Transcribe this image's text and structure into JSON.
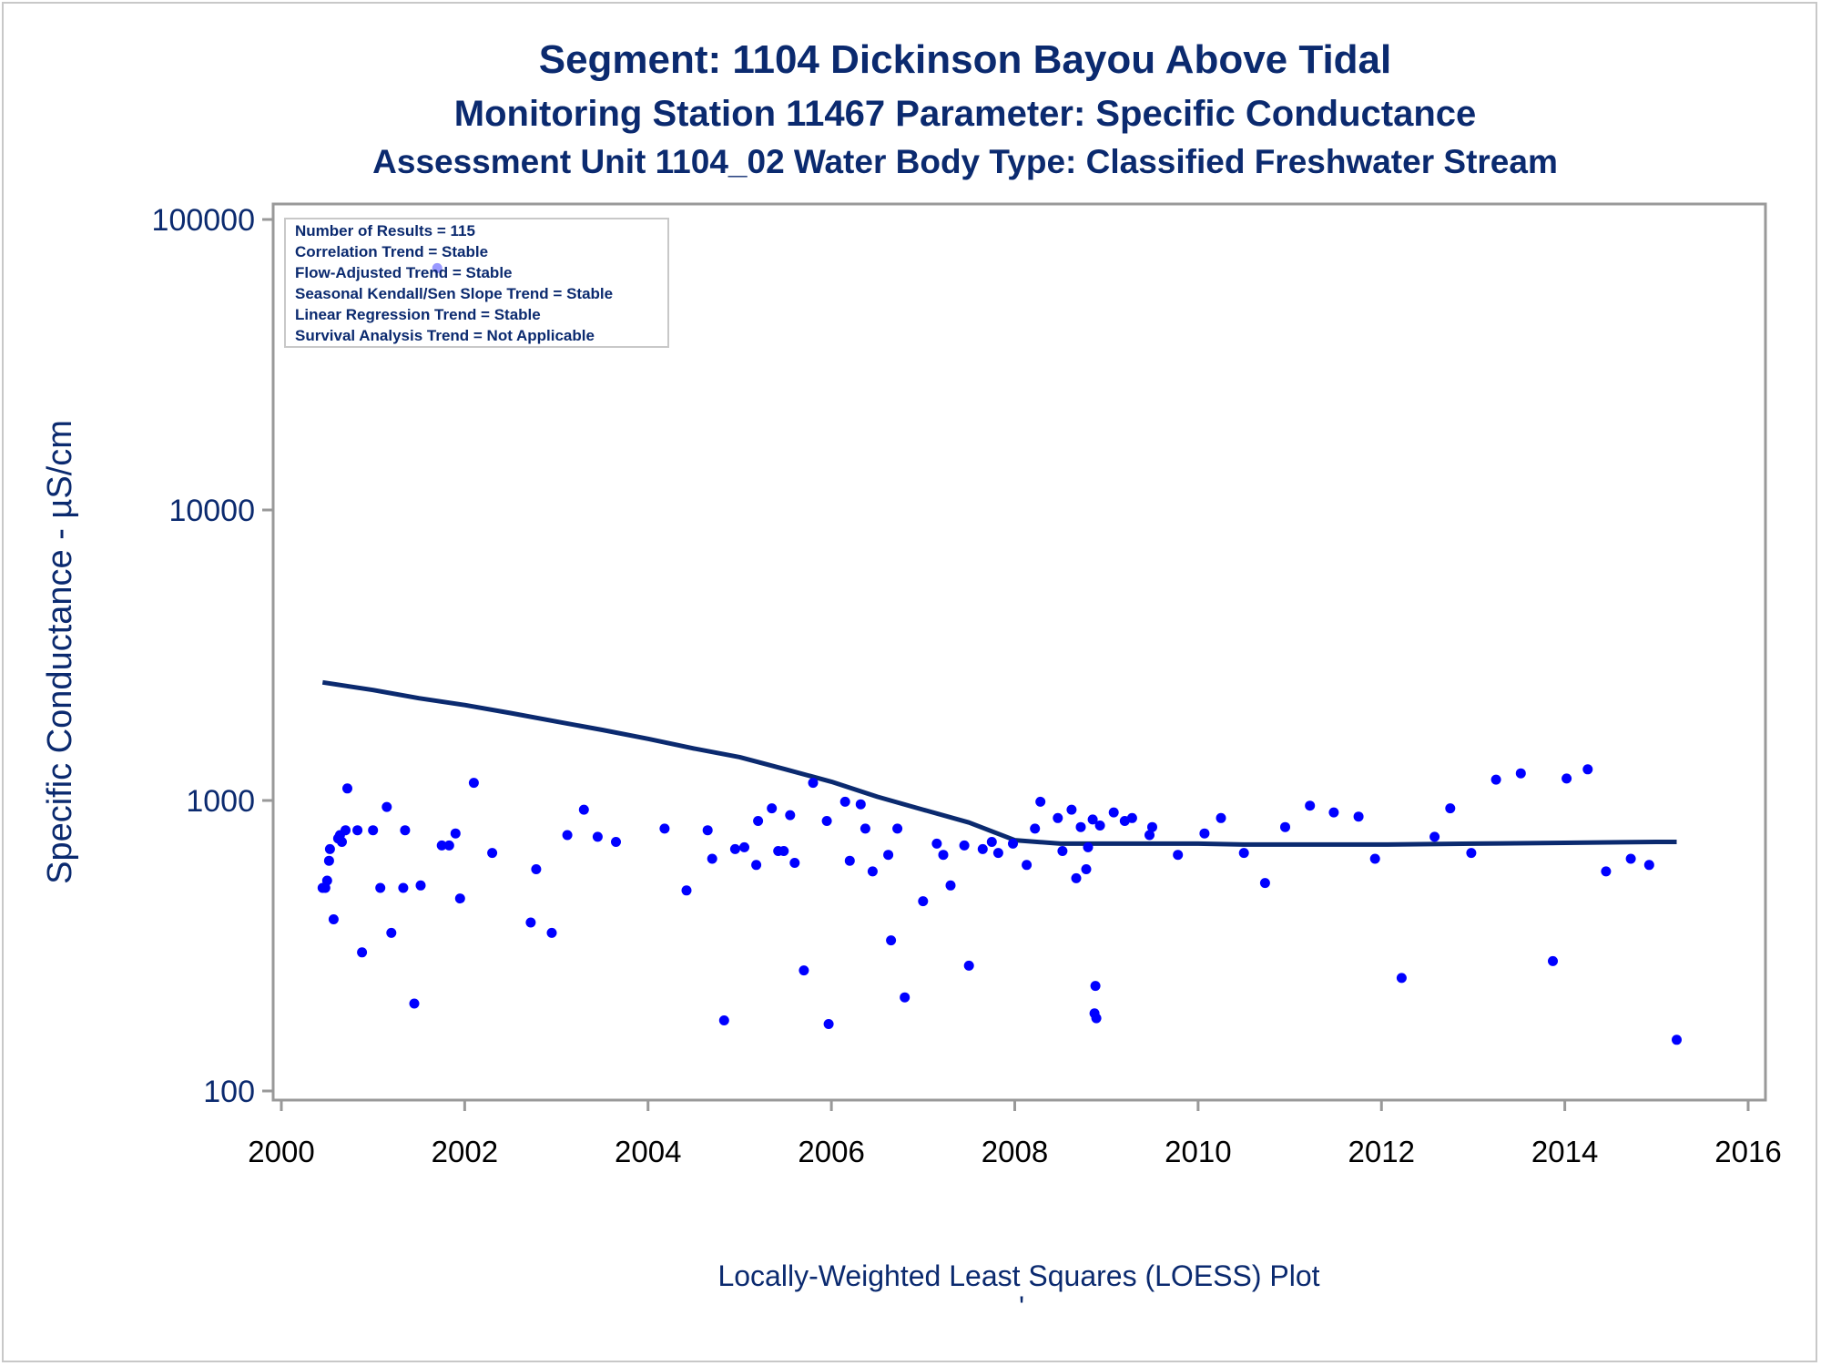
{
  "chart_data": {
    "type": "scatter",
    "title": "Segment: 1104  Dickinson Bayou Above Tidal",
    "subtitle": "Monitoring Station 11467 Parameter: Specific Conductance",
    "subtitle2": "Assessment Unit 1104_02   Water Body Type: Classified Freshwater Stream",
    "xlabel": "Locally-Weighted Least Squares (LOESS) Plot",
    "ylabel": "Specific Conductance -  µS/cm",
    "footer_mark": "'",
    "x_ticks": [
      "2000",
      "2002",
      "2004",
      "2006",
      "2008",
      "2010",
      "2012",
      "2014",
      "2016"
    ],
    "y_ticks": [
      "100",
      "1000",
      "10000",
      "100000"
    ],
    "xlim": [
      2000,
      2016
    ],
    "ylim": [
      100,
      100000
    ],
    "y_scale": "log",
    "grid": false,
    "legend_position": "top-left",
    "stats": [
      "Number of Results = 115",
      "Correlation Trend = Stable",
      "Flow-Adjusted Trend = Stable",
      "Seasonal Kendall/Sen Slope Trend = Stable",
      "Linear Regression Trend = Stable",
      "Survival Analysis Trend = Not Applicable"
    ],
    "colors": {
      "points": "#0000ff",
      "loess": "#0b2a6f",
      "text": "#0b2a6f",
      "axis": "#999999"
    },
    "points": [
      [
        2000.45,
        500
      ],
      [
        2000.48,
        500
      ],
      [
        2000.5,
        530
      ],
      [
        2000.52,
        620
      ],
      [
        2000.53,
        680
      ],
      [
        2000.57,
        390
      ],
      [
        2000.62,
        740
      ],
      [
        2000.64,
        760
      ],
      [
        2000.66,
        720
      ],
      [
        2000.7,
        790
      ],
      [
        2000.72,
        1100
      ],
      [
        2000.83,
        790
      ],
      [
        2000.88,
        300
      ],
      [
        2001.0,
        790
      ],
      [
        2001.08,
        500
      ],
      [
        2001.15,
        950
      ],
      [
        2001.2,
        350
      ],
      [
        2001.33,
        500
      ],
      [
        2001.35,
        790
      ],
      [
        2001.45,
        200
      ],
      [
        2001.52,
        510
      ],
      [
        2001.7,
        68000
      ],
      [
        2001.75,
        700
      ],
      [
        2001.83,
        700
      ],
      [
        2001.9,
        770
      ],
      [
        2001.95,
        460
      ],
      [
        2002.1,
        1150
      ],
      [
        2002.3,
        660
      ],
      [
        2002.72,
        380
      ],
      [
        2002.78,
        580
      ],
      [
        2002.95,
        350
      ],
      [
        2003.12,
        760
      ],
      [
        2003.3,
        930
      ],
      [
        2003.45,
        750
      ],
      [
        2003.65,
        720
      ],
      [
        2004.18,
        800
      ],
      [
        2004.42,
        490
      ],
      [
        2004.65,
        790
      ],
      [
        2004.7,
        630
      ],
      [
        2004.83,
        175
      ],
      [
        2004.95,
        680
      ],
      [
        2005.05,
        690
      ],
      [
        2005.18,
        600
      ],
      [
        2005.2,
        850
      ],
      [
        2005.35,
        940
      ],
      [
        2005.42,
        670
      ],
      [
        2005.48,
        670
      ],
      [
        2005.55,
        890
      ],
      [
        2005.6,
        610
      ],
      [
        2005.7,
        260
      ],
      [
        2005.8,
        1150
      ],
      [
        2005.95,
        850
      ],
      [
        2005.97,
        170
      ],
      [
        2006.15,
        990
      ],
      [
        2006.2,
        620
      ],
      [
        2006.32,
        970
      ],
      [
        2006.37,
        800
      ],
      [
        2006.45,
        570
      ],
      [
        2006.62,
        650
      ],
      [
        2006.65,
        330
      ],
      [
        2006.72,
        800
      ],
      [
        2006.8,
        210
      ],
      [
        2007.0,
        450
      ],
      [
        2007.15,
        710
      ],
      [
        2007.22,
        650
      ],
      [
        2007.3,
        510
      ],
      [
        2007.45,
        700
      ],
      [
        2007.5,
        270
      ],
      [
        2007.65,
        680
      ],
      [
        2007.75,
        720
      ],
      [
        2007.82,
        660
      ],
      [
        2007.98,
        710
      ],
      [
        2008.13,
        600
      ],
      [
        2008.22,
        800
      ],
      [
        2008.28,
        990
      ],
      [
        2008.47,
        870
      ],
      [
        2008.52,
        670
      ],
      [
        2008.62,
        930
      ],
      [
        2008.67,
        540
      ],
      [
        2008.72,
        810
      ],
      [
        2008.78,
        580
      ],
      [
        2008.8,
        690
      ],
      [
        2008.85,
        860
      ],
      [
        2008.87,
        185
      ],
      [
        2008.88,
        230
      ],
      [
        2008.89,
        178
      ],
      [
        2008.93,
        820
      ],
      [
        2009.08,
        910
      ],
      [
        2009.2,
        850
      ],
      [
        2009.28,
        870
      ],
      [
        2009.47,
        760
      ],
      [
        2009.5,
        810
      ],
      [
        2009.78,
        650
      ],
      [
        2010.07,
        770
      ],
      [
        2010.25,
        870
      ],
      [
        2010.5,
        660
      ],
      [
        2010.73,
        520
      ],
      [
        2010.95,
        810
      ],
      [
        2011.22,
        960
      ],
      [
        2011.48,
        910
      ],
      [
        2011.75,
        880
      ],
      [
        2011.93,
        630
      ],
      [
        2012.22,
        245
      ],
      [
        2012.58,
        750
      ],
      [
        2012.75,
        940
      ],
      [
        2012.98,
        660
      ],
      [
        2013.25,
        1180
      ],
      [
        2013.52,
        1240
      ],
      [
        2013.87,
        280
      ],
      [
        2014.02,
        1190
      ],
      [
        2014.25,
        1280
      ],
      [
        2014.45,
        570
      ],
      [
        2014.72,
        630
      ],
      [
        2014.92,
        600
      ],
      [
        2015.22,
        150
      ]
    ],
    "loess": [
      [
        2000.45,
        2550
      ],
      [
        2001.0,
        2400
      ],
      [
        2001.5,
        2250
      ],
      [
        2002.0,
        2130
      ],
      [
        2002.5,
        2000
      ],
      [
        2003.0,
        1870
      ],
      [
        2003.5,
        1750
      ],
      [
        2004.0,
        1630
      ],
      [
        2004.5,
        1510
      ],
      [
        2005.0,
        1410
      ],
      [
        2005.5,
        1280
      ],
      [
        2006.0,
        1160
      ],
      [
        2006.5,
        1030
      ],
      [
        2007.0,
        930
      ],
      [
        2007.5,
        840
      ],
      [
        2008.0,
        730
      ],
      [
        2008.5,
        710
      ],
      [
        2009.0,
        710
      ],
      [
        2010.0,
        710
      ],
      [
        2010.5,
        705
      ],
      [
        2011.0,
        705
      ],
      [
        2012.0,
        705
      ],
      [
        2013.0,
        710
      ],
      [
        2014.0,
        715
      ],
      [
        2015.0,
        720
      ],
      [
        2015.22,
        720
      ]
    ]
  }
}
